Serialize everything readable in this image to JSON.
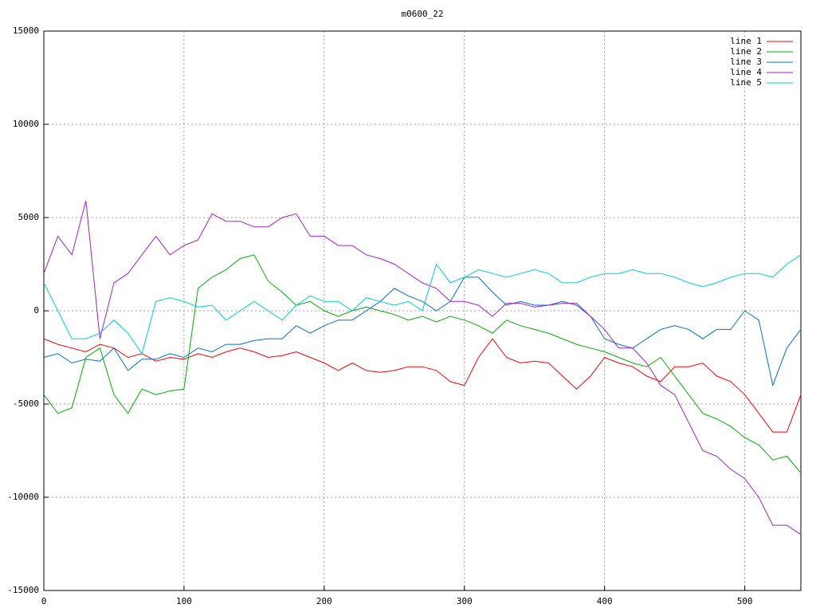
{
  "chart_data": {
    "type": "line",
    "title": "m0600_22",
    "x": [
      0,
      10,
      20,
      30,
      40,
      50,
      60,
      70,
      80,
      90,
      100,
      110,
      120,
      130,
      140,
      150,
      160,
      170,
      180,
      190,
      200,
      210,
      220,
      230,
      240,
      250,
      260,
      270,
      280,
      290,
      300,
      310,
      320,
      330,
      340,
      350,
      360,
      370,
      380,
      390,
      400,
      410,
      420,
      430,
      440,
      450,
      460,
      470,
      480,
      490,
      500,
      510,
      520,
      530,
      540
    ],
    "series": [
      {
        "name": "line 1",
        "color": "#ff0000",
        "values": [
          -1500,
          -1800,
          -2000,
          -2200,
          -1800,
          -2000,
          -2500,
          -2300,
          -2700,
          -2500,
          -2600,
          -2300,
          -2500,
          -2200,
          -2000,
          -2200,
          -2500,
          -2400,
          -2200,
          -2500,
          -2800,
          -3200,
          -2800,
          -3200,
          -3300,
          -3200,
          -3000,
          -3000,
          -3200,
          -3800,
          -4000,
          -2500,
          -1500,
          -2500,
          -2800,
          -2700,
          -2800,
          -3500,
          -4200,
          -3500,
          -2500,
          -2800,
          -3000,
          -3500,
          -3800,
          -3000,
          -3000,
          -2800,
          -3500,
          -3800,
          -4500,
          -5500,
          -6500,
          -6500,
          -4500
        ]
      },
      {
        "name": "line 2",
        "color": "#00b000",
        "values": [
          -4500,
          -5500,
          -5200,
          -2500,
          -2000,
          -4500,
          -5500,
          -4200,
          -4500,
          -4300,
          -4200,
          1200,
          1800,
          2200,
          2800,
          3000,
          1600,
          1000,
          300,
          500,
          0,
          -300,
          0,
          200,
          0,
          -200,
          -500,
          -300,
          -600,
          -300,
          -500,
          -800,
          -1200,
          -500,
          -800,
          -1000,
          -1200,
          -1500,
          -1800,
          -2000,
          -2200,
          -2500,
          -2800,
          -3000,
          -2500,
          -3500,
          -4500,
          -5500,
          -5800,
          -6200,
          -6800,
          -7200,
          -8000,
          -7800,
          -8700
        ]
      },
      {
        "name": "line 3",
        "color": "#0070d0",
        "values": [
          -2500,
          -2300,
          -2800,
          -2600,
          -2700,
          -2000,
          -3200,
          -2600,
          -2600,
          -2300,
          -2500,
          -2000,
          -2200,
          -1800,
          -1800,
          -1600,
          -1500,
          -1500,
          -800,
          -1200,
          -800,
          -500,
          -500,
          0,
          500,
          1200,
          800,
          500,
          0,
          500,
          1800,
          1800,
          1000,
          300,
          500,
          300,
          300,
          500,
          300,
          -300,
          -1500,
          -1800,
          -2000,
          -1500,
          -1000,
          -800,
          -1000,
          -1500,
          -1000,
          -1000,
          0,
          -500,
          -4000,
          -2000,
          -1000
        ]
      },
      {
        "name": "line 4",
        "color": "#a020d0",
        "values": [
          2000,
          4000,
          3000,
          5900,
          -1500,
          1500,
          2000,
          3000,
          4000,
          3000,
          3500,
          3800,
          5200,
          4800,
          4800,
          4500,
          4500,
          5000,
          5200,
          4000,
          4000,
          3500,
          3500,
          3000,
          2800,
          2500,
          2000,
          1500,
          1200,
          500,
          500,
          300,
          -300,
          400,
          400,
          200,
          300,
          400,
          400,
          -300,
          -1000,
          -2000,
          -2000,
          -2800,
          -4000,
          -4500,
          -6000,
          -7500,
          -7800,
          -8500,
          -9000,
          -10000,
          -11500,
          -11500,
          -12000
        ]
      },
      {
        "name": "line 5",
        "color": "#00d0d0",
        "values": [
          1500,
          0,
          -1500,
          -1500,
          -1200,
          -500,
          -1200,
          -2300,
          500,
          700,
          500,
          200,
          300,
          -500,
          0,
          500,
          0,
          -500,
          300,
          800,
          500,
          500,
          0,
          700,
          500,
          300,
          500,
          0,
          2500,
          1500,
          1800,
          2200,
          2000,
          1800,
          2000,
          2200,
          2000,
          1500,
          1500,
          1800,
          2000,
          2000,
          2200,
          2000,
          2000,
          1800,
          1500,
          1300,
          1500,
          1800,
          2000,
          2000,
          1800,
          2500,
          3000
        ]
      }
    ],
    "xlim": [
      0,
      540
    ],
    "xticks": [
      0,
      100,
      200,
      300,
      400,
      500
    ],
    "ylim": [
      -15000,
      15000
    ],
    "yticks": [
      -15000,
      -10000,
      -5000,
      0,
      5000,
      10000,
      15000
    ],
    "grid": true,
    "legend": "top-right"
  }
}
